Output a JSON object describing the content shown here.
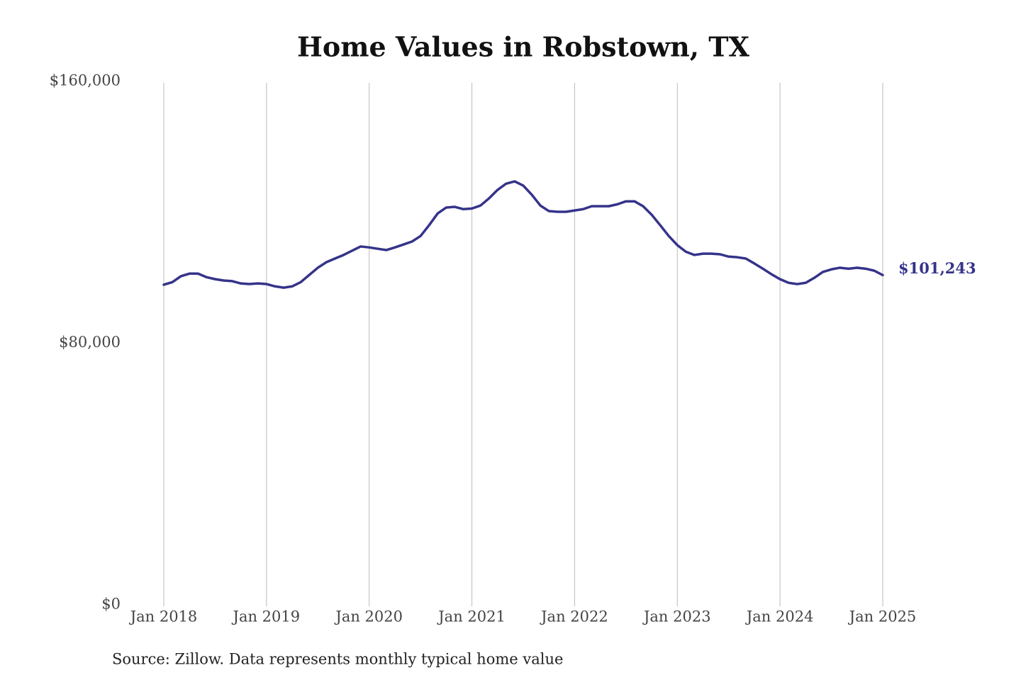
{
  "chart_data": {
    "type": "line",
    "title": "Home Values in Robstown, TX",
    "source": "Source: Zillow. Data represents monthly typical home value",
    "categories": [
      "Jan 2018",
      null,
      null,
      null,
      null,
      null,
      null,
      null,
      null,
      null,
      null,
      null,
      "Jan 2019",
      null,
      null,
      null,
      null,
      null,
      null,
      null,
      null,
      null,
      null,
      null,
      "Jan 2020",
      null,
      null,
      null,
      null,
      null,
      null,
      null,
      null,
      null,
      null,
      null,
      "Jan 2021",
      null,
      null,
      null,
      null,
      null,
      null,
      null,
      null,
      null,
      null,
      null,
      "Jan 2022",
      null,
      null,
      null,
      null,
      null,
      null,
      null,
      null,
      null,
      null,
      null,
      "Jan 2023",
      null,
      null,
      null,
      null,
      null,
      null,
      null,
      null,
      null,
      null,
      null,
      "Jan 2024",
      null,
      null,
      null,
      null,
      null,
      null,
      null,
      null,
      null,
      null,
      null,
      "Jan 2025"
    ],
    "series": [
      {
        "name": "Robstown, TX",
        "color": "#35338a",
        "values": [
          98300,
          99100,
          100900,
          101700,
          101700,
          100600,
          100000,
          99600,
          99400,
          98700,
          98500,
          98700,
          98500,
          97800,
          97400,
          97800,
          99100,
          101300,
          103500,
          105200,
          106300,
          107400,
          108700,
          110000,
          109700,
          109300,
          108900,
          109700,
          110600,
          111500,
          113200,
          116500,
          120100,
          121900,
          122100,
          121400,
          121600,
          122500,
          124700,
          127300,
          129200,
          129900,
          128600,
          125800,
          122500,
          120800,
          120600,
          120600,
          121000,
          121400,
          122300,
          122300,
          122300,
          122900,
          123800,
          123800,
          122300,
          119700,
          116500,
          113200,
          110400,
          108400,
          107400,
          107800,
          107800,
          107600,
          106900,
          106700,
          106300,
          104800,
          103200,
          101500,
          100000,
          98900,
          98500,
          98900,
          100400,
          102200,
          103000,
          103500,
          103200,
          103500,
          103200,
          102600,
          101243
        ],
        "value_labels": [
          null,
          null,
          null,
          null,
          null,
          null,
          null,
          null,
          null,
          null,
          null,
          null,
          null,
          null,
          null,
          null,
          null,
          null,
          null,
          null,
          null,
          null,
          null,
          null,
          null,
          null,
          null,
          null,
          null,
          null,
          null,
          null,
          null,
          null,
          null,
          null,
          null,
          null,
          null,
          null,
          null,
          null,
          null,
          null,
          null,
          null,
          null,
          null,
          null,
          null,
          null,
          null,
          null,
          null,
          null,
          null,
          null,
          null,
          null,
          null,
          null,
          null,
          null,
          null,
          null,
          null,
          null,
          null,
          null,
          null,
          null,
          null,
          null,
          null,
          null,
          null,
          null,
          null,
          null,
          null,
          null,
          null,
          null,
          null,
          "$101,243"
        ]
      }
    ],
    "ylim": [
      0,
      160000
    ],
    "yticks": [
      {
        "value": 0,
        "label": "$0"
      },
      {
        "value": 80000,
        "label": "$80,000"
      },
      {
        "value": 160000,
        "label": "$160,000"
      }
    ],
    "grid": "x"
  }
}
